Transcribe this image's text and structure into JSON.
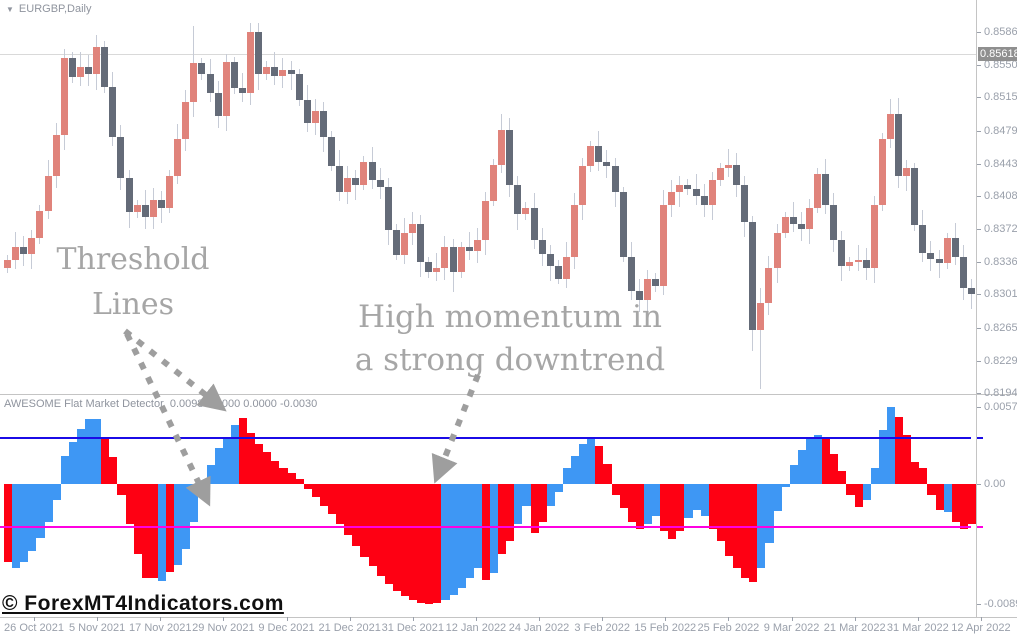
{
  "window": {
    "symbol_label": "EURGBP,Daily",
    "dropdown_glyph": "▼"
  },
  "price_scale": {
    "current_label": "0.85618",
    "current_value": 0.85618,
    "labels": [
      "0.85860",
      "0.85500",
      "0.85150",
      "0.84790",
      "0.84430",
      "0.84080",
      "0.83720",
      "0.83360",
      "0.83010",
      "0.82650",
      "0.82290",
      "0.81940"
    ]
  },
  "indicator": {
    "name": "AWESOME Flat Market Detector",
    "values": "0.0098 0.0000 0.0000 -0.0030",
    "scale_labels": [
      {
        "text": "0.0057",
        "value": 0.0057
      },
      {
        "text": "0.00",
        "value": 0.0
      },
      {
        "text": "-0.0089",
        "value": -0.0089
      }
    ]
  },
  "time_scale": {
    "labels": [
      "26 Oct 2021",
      "5 Nov 2021",
      "17 Nov 2021",
      "29 Nov 2021",
      "9 Dec 2021",
      "21 Dec 2021",
      "31 Dec 2021",
      "12 Jan 2022",
      "24 Jan 2022",
      "3 Feb 2022",
      "15 Feb 2022",
      "25 Feb 2022",
      "9 Mar 2022",
      "21 Mar 2022",
      "31 Mar 2022",
      "12 Apr 2022"
    ]
  },
  "annotations": {
    "threshold_lines": "Threshold Lines",
    "momentum": "High momentum in a strong downtrend",
    "watermark": "© ForexMT4Indicators.com"
  },
  "colors": {
    "bull_body": "#e0837b",
    "bear_body": "#646b78",
    "wick": "#c6cbd6",
    "histo_red": "#fe0013",
    "histo_blue": "#3e97f4",
    "threshold_upper": "#1b0be6",
    "threshold_lower": "#ff00e1",
    "annotation_gray": "#a6a6a6",
    "arrow_gray": "#9e9e9e",
    "axis_text": "#9aa0ab",
    "current_tag_bg": "#8f8f8f"
  },
  "chart_data": {
    "type": "candlestick+histogram",
    "symbol": "EURGBP",
    "timeframe": "Daily",
    "price_axis": {
      "min": 0.8194,
      "max": 0.8586,
      "tick_step": 0.0036
    },
    "indicator_axis": {
      "max": 0.0057,
      "zero": 0.0,
      "min": -0.0089
    },
    "thresholds": {
      "upper": 0.0034,
      "lower": -0.0032
    },
    "candles": {
      "first_open": 0.833,
      "closes": [
        0.8338,
        0.8352,
        0.8345,
        0.8362,
        0.8392,
        0.843,
        0.8474,
        0.8558,
        0.8537,
        0.8548,
        0.854,
        0.857,
        0.8526,
        0.8472,
        0.8427,
        0.839,
        0.8398,
        0.8385,
        0.8404,
        0.8395,
        0.843,
        0.847,
        0.851,
        0.8552,
        0.854,
        0.852,
        0.8495,
        0.8553,
        0.8525,
        0.852,
        0.8586,
        0.854,
        0.8548,
        0.8538,
        0.8545,
        0.854,
        0.8512,
        0.8487,
        0.85,
        0.8472,
        0.8441,
        0.8412,
        0.8427,
        0.842,
        0.8445,
        0.8425,
        0.8418,
        0.8371,
        0.8344,
        0.8368,
        0.8378,
        0.8336,
        0.8325,
        0.833,
        0.8352,
        0.8325,
        0.8352,
        0.8348,
        0.836,
        0.8403,
        0.8442,
        0.848,
        0.842,
        0.8388,
        0.8395,
        0.836,
        0.8345,
        0.8332,
        0.8318,
        0.8342,
        0.8398,
        0.844,
        0.8462,
        0.8445,
        0.844,
        0.8412,
        0.8342,
        0.8305,
        0.8295,
        0.8318,
        0.831,
        0.8398,
        0.8412,
        0.842,
        0.8415,
        0.8408,
        0.8398,
        0.8425,
        0.8438,
        0.8442,
        0.842,
        0.838,
        0.8262,
        0.8292,
        0.833,
        0.8368,
        0.8385,
        0.8378,
        0.8372,
        0.8395,
        0.8432,
        0.8398,
        0.836,
        0.8332,
        0.8336,
        0.8338,
        0.833,
        0.8398,
        0.847,
        0.8497,
        0.843,
        0.8438,
        0.8376,
        0.8346,
        0.834,
        0.8335,
        0.8362,
        0.8342,
        0.8308,
        0.8302
      ],
      "wick_high_overrides": {
        "11": 0.8583,
        "23": 0.8592,
        "30": 0.8596,
        "101": 0.8448,
        "110": 0.8514
      },
      "wick_low_overrides": {
        "17": 0.8372,
        "55": 0.8304,
        "78": 0.8282,
        "92": 0.824,
        "93": 0.8198
      }
    },
    "indicator_bars": [
      [
        -0.0058,
        "r"
      ],
      [
        -0.0062,
        "b"
      ],
      [
        -0.0058,
        "b"
      ],
      [
        -0.005,
        "b"
      ],
      [
        -0.004,
        "b"
      ],
      [
        -0.0028,
        "b"
      ],
      [
        -0.0012,
        "b"
      ],
      [
        0.0021,
        "b"
      ],
      [
        0.0031,
        "b"
      ],
      [
        0.0041,
        "b"
      ],
      [
        0.0048,
        "b"
      ],
      [
        0.0048,
        "b"
      ],
      [
        0.0035,
        "r"
      ],
      [
        0.002,
        "r"
      ],
      [
        -0.0008,
        "r"
      ],
      [
        -0.003,
        "r"
      ],
      [
        -0.0052,
        "r"
      ],
      [
        -0.007,
        "r"
      ],
      [
        -0.007,
        "r"
      ],
      [
        -0.0072,
        "b"
      ],
      [
        -0.0065,
        "r"
      ],
      [
        -0.006,
        "b"
      ],
      [
        -0.0048,
        "b"
      ],
      [
        -0.0028,
        "b"
      ],
      [
        -0.001,
        "b"
      ],
      [
        0.0014,
        "b"
      ],
      [
        0.0027,
        "b"
      ],
      [
        0.0035,
        "b"
      ],
      [
        0.0044,
        "b"
      ],
      [
        0.0049,
        "r"
      ],
      [
        0.0038,
        "r"
      ],
      [
        0.003,
        "r"
      ],
      [
        0.0024,
        "r"
      ],
      [
        0.0017,
        "r"
      ],
      [
        0.0012,
        "r"
      ],
      [
        0.0008,
        "r"
      ],
      [
        0.0004,
        "r"
      ],
      [
        -0.0004,
        "r"
      ],
      [
        -0.001,
        "r"
      ],
      [
        -0.0016,
        "r"
      ],
      [
        -0.0022,
        "r"
      ],
      [
        -0.003,
        "r"
      ],
      [
        -0.0038,
        "r"
      ],
      [
        -0.0046,
        "r"
      ],
      [
        -0.0054,
        "r"
      ],
      [
        -0.0061,
        "r"
      ],
      [
        -0.0068,
        "r"
      ],
      [
        -0.0074,
        "r"
      ],
      [
        -0.0079,
        "r"
      ],
      [
        -0.0083,
        "r"
      ],
      [
        -0.0086,
        "r"
      ],
      [
        -0.0088,
        "r"
      ],
      [
        -0.0089,
        "r"
      ],
      [
        -0.0088,
        "r"
      ],
      [
        -0.0086,
        "b"
      ],
      [
        -0.0082,
        "b"
      ],
      [
        -0.0077,
        "b"
      ],
      [
        -0.007,
        "b"
      ],
      [
        -0.0062,
        "b"
      ],
      [
        -0.0071,
        "r"
      ],
      [
        -0.0066,
        "b"
      ],
      [
        -0.0052,
        "r"
      ],
      [
        -0.0042,
        "r"
      ],
      [
        -0.003,
        "b"
      ],
      [
        -0.0016,
        "b"
      ],
      [
        -0.0036,
        "r"
      ],
      [
        -0.0028,
        "r"
      ],
      [
        -0.0016,
        "b"
      ],
      [
        -0.0006,
        "b"
      ],
      [
        0.0012,
        "b"
      ],
      [
        0.0021,
        "b"
      ],
      [
        0.003,
        "b"
      ],
      [
        0.0034,
        "b"
      ],
      [
        0.0028,
        "r"
      ],
      [
        0.0015,
        "r"
      ],
      [
        -0.0008,
        "r"
      ],
      [
        -0.0018,
        "r"
      ],
      [
        -0.0028,
        "r"
      ],
      [
        -0.0033,
        "r"
      ],
      [
        -0.003,
        "b"
      ],
      [
        -0.0024,
        "b"
      ],
      [
        -0.0035,
        "r"
      ],
      [
        -0.0041,
        "r"
      ],
      [
        -0.0035,
        "r"
      ],
      [
        -0.0025,
        "b"
      ],
      [
        -0.0019,
        "b"
      ],
      [
        -0.0024,
        "b"
      ],
      [
        -0.0033,
        "r"
      ],
      [
        -0.0042,
        "r"
      ],
      [
        -0.0053,
        "r"
      ],
      [
        -0.0062,
        "r"
      ],
      [
        -0.007,
        "r"
      ],
      [
        -0.0073,
        "r"
      ],
      [
        -0.0062,
        "b"
      ],
      [
        -0.0044,
        "b"
      ],
      [
        -0.002,
        "b"
      ],
      [
        -0.0002,
        "b"
      ],
      [
        0.0014,
        "b"
      ],
      [
        0.0025,
        "b"
      ],
      [
        0.0033,
        "b"
      ],
      [
        0.0036,
        "b"
      ],
      [
        0.0033,
        "r"
      ],
      [
        0.0022,
        "r"
      ],
      [
        0.001,
        "r"
      ],
      [
        -0.0008,
        "r"
      ],
      [
        -0.0017,
        "r"
      ],
      [
        -0.0012,
        "b"
      ],
      [
        0.0012,
        "b"
      ],
      [
        0.004,
        "b"
      ],
      [
        0.0057,
        "b"
      ],
      [
        0.005,
        "r"
      ],
      [
        0.0036,
        "r"
      ],
      [
        0.0016,
        "r"
      ],
      [
        0.0012,
        "r"
      ],
      [
        -0.0008,
        "r"
      ],
      [
        -0.0019,
        "r"
      ],
      [
        -0.0021,
        "b"
      ],
      [
        -0.0028,
        "r"
      ],
      [
        -0.0033,
        "r"
      ],
      [
        -0.003,
        "r"
      ]
    ]
  }
}
